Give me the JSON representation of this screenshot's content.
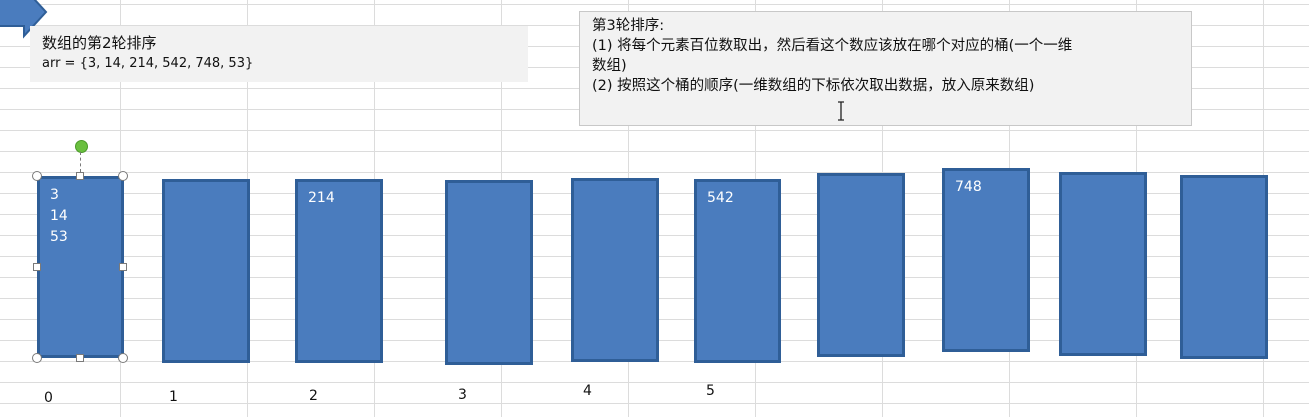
{
  "note_left": {
    "title": "数组的第2轮排序",
    "array": "arr = {3, 14, 214, 542, 748, 53}"
  },
  "note_right": {
    "line1": "第3轮排序:",
    "line2": "(1) 将每个元素百位数取出，然后看这个数应该放在哪个对应的桶(一个一维",
    "line3": "数组)",
    "line4": "(2) 按照这个桶的顺序(一维数组的下标依次取出数据，放入原来数组)"
  },
  "buckets": [
    {
      "label": "0",
      "values": [
        "3",
        "14",
        "53"
      ]
    },
    {
      "label": "1",
      "values": []
    },
    {
      "label": "2",
      "values": [
        "214"
      ]
    },
    {
      "label": "3",
      "values": []
    },
    {
      "label": "4",
      "values": []
    },
    {
      "label": "5",
      "values": [
        "542"
      ]
    },
    {
      "label": "",
      "values": []
    },
    {
      "label": "",
      "values": [
        "748"
      ]
    },
    {
      "label": "",
      "values": []
    },
    {
      "label": "",
      "values": []
    }
  ],
  "colors": {
    "bucket_fill": "#4a7cbe",
    "bucket_border": "#2f5e97",
    "note_background": "#f2f2f2",
    "rotation_handle": "#6abf3f"
  },
  "icons": {
    "arrow": "arrow-shape-icon",
    "cursor": "text-cursor-icon"
  }
}
